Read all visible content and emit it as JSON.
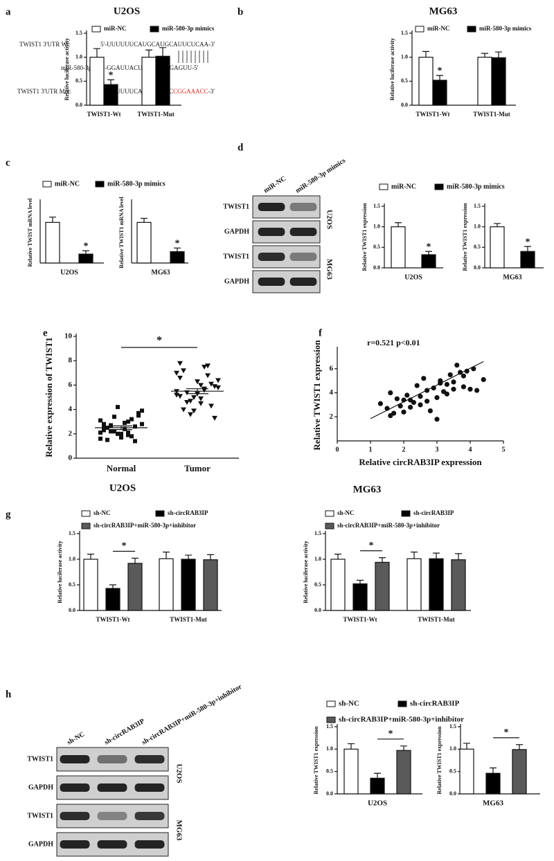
{
  "panels": [
    "a",
    "b",
    "c",
    "d",
    "e",
    "f",
    "g",
    "h"
  ],
  "sequences": {
    "wt_label": "TWIST1  3'UTR  Wt:",
    "wt": "5'-UUUUUUCAUGCAUGCAUUCUCAA-3'",
    "mir_label": "miR-580-3p",
    "sep": ":",
    "mir": "3'-GGAUUACUAAGUAAGAGUU-5'",
    "mut_label": "TWIST1  3'UTR  Mut:",
    "mut": [
      "5'-UUUUUUCAUGCAUGC",
      "CGGAAACC",
      "-3'"
    ],
    "mut_color": "#e0261f"
  },
  "blots": [
    {
      "lanes": [
        "miR-NC",
        "miR-580-3p mimics"
      ],
      "rows": [
        "TWIST1",
        "GAPDH",
        "TWIST1",
        "GAPDH"
      ],
      "cell_lines": [
        "U2OS",
        "MG63"
      ]
    },
    {
      "lanes": [
        "sh-NC",
        "sh-circRAB3IP",
        "sh-circRAB3IP+miR-580-3p+inhibitor"
      ],
      "rows": [
        "TWIST1",
        "GAPDH",
        "TWIST1",
        "GAPDH"
      ],
      "cell_lines": [
        "U2OS",
        "MG63"
      ]
    }
  ],
  "chart_data": [
    {
      "type": "bar",
      "title": "U2OS",
      "y_label": "Relative luciferase activity",
      "categories": [
        "TWIST1-Wt",
        "TWIST1-Mut"
      ],
      "series": [
        {
          "name": "miR-NC",
          "color": "#ffffff",
          "values": [
            1.0,
            1.0
          ],
          "errors": [
            0.18,
            0.15
          ]
        },
        {
          "name": "miR-580-3p mimics",
          "color": "#000000",
          "values": [
            0.43,
            1.02
          ],
          "errors": [
            0.1,
            0.18
          ]
        }
      ],
      "ylim": [
        0,
        1.5
      ],
      "yticks": [
        {
          "value": 0,
          "label": "0.0"
        },
        0.5,
        {
          "value": 1,
          "label": "1.0"
        },
        {
          "value": 1.5,
          "label": "1.5"
        }
      ],
      "annotation": "*"
    },
    {
      "type": "bar",
      "title": "MG63",
      "y_label": "Relative luciferase activity",
      "categories": [
        "TWIST1-Wt",
        "TWIST1-Mut"
      ],
      "series": [
        {
          "name": "miR-NC",
          "color": "#ffffff",
          "values": [
            1.0,
            1.0
          ],
          "errors": [
            0.12,
            0.08
          ]
        },
        {
          "name": "miR-580-3p mimics",
          "color": "#000000",
          "values": [
            0.52,
            0.99
          ],
          "errors": [
            0.1,
            0.12
          ]
        }
      ],
      "ylim": [
        0,
        1.5
      ],
      "yticks": [
        {
          "value": 0,
          "label": "0.0"
        },
        0.5,
        {
          "value": 1,
          "label": "1.0"
        },
        {
          "value": 1.5,
          "label": "1.5"
        }
      ],
      "annotation": "*"
    },
    {
      "type": "bar",
      "y_label": "Relative TWIST mRNA  level",
      "categories": [
        "U2OS"
      ],
      "series": [
        {
          "name": "miR-NC",
          "color": "#ffffff",
          "values": [
            1.0
          ],
          "errors": [
            0.13
          ]
        },
        {
          "name": "miR-580-3p mimics",
          "color": "#000000",
          "values": [
            0.22
          ],
          "errors": [
            0.08
          ]
        }
      ],
      "ylim": [
        0,
        1.5
      ],
      "annotation": "*"
    },
    {
      "type": "bar",
      "y_label": "Relative TWIST1 mRNA  level",
      "categories": [
        "MG63"
      ],
      "series": [
        {
          "color": "#ffffff",
          "values": [
            1.0
          ],
          "errors": [
            0.1
          ]
        },
        {
          "color": "#000000",
          "values": [
            0.28
          ],
          "errors": [
            0.09
          ]
        }
      ],
      "ylim": [
        0,
        1.5
      ],
      "annotation": "*"
    },
    {
      "type": "bar",
      "y_label": "Relative TWIST1  expression",
      "categories": [
        "U2OS"
      ],
      "series": [
        {
          "name": "miR-NC",
          "color": "#ffffff",
          "values": [
            1.0
          ],
          "errors": [
            0.1
          ]
        },
        {
          "name": "miR-580-3p mimics",
          "color": "#000000",
          "values": [
            0.32
          ],
          "errors": [
            0.08
          ]
        }
      ],
      "ylim": [
        0,
        1.5
      ],
      "yticks": [
        {
          "value": 0,
          "label": "0.0"
        },
        0.5,
        {
          "value": 1,
          "label": "1.0"
        },
        {
          "value": 1.5,
          "label": "1.5"
        }
      ],
      "annotation": "*"
    },
    {
      "type": "bar",
      "y_label": "Relative TWIST1  expression",
      "categories": [
        "MG63"
      ],
      "series": [
        {
          "color": "#ffffff",
          "values": [
            1.0
          ],
          "errors": [
            0.08
          ]
        },
        {
          "color": "#000000",
          "values": [
            0.4
          ],
          "errors": [
            0.12
          ]
        }
      ],
      "ylim": [
        0,
        1.5
      ],
      "yticks": [
        {
          "value": 0,
          "label": "0.0"
        },
        0.5,
        {
          "value": 1,
          "label": "1.0"
        },
        {
          "value": 1.5,
          "label": "1.5"
        }
      ],
      "annotation": "*"
    },
    {
      "type": "dotplot",
      "y_label": "Relative  expression  of TWIST1",
      "categories": [
        "Normal",
        "Tumor"
      ],
      "values": [
        [
          2.1,
          2.4,
          2.8,
          3.0,
          1.5,
          1.8,
          2.2,
          2.6,
          3.4,
          3.7,
          4.2,
          3.9,
          2.0,
          1.6,
          2.9,
          2.3,
          1.9,
          2.5,
          3.2,
          2.7,
          1.4,
          2.2,
          3.5,
          2.0,
          2.8,
          1.7,
          3.1,
          2.4,
          2.6,
          2.1
        ],
        [
          5.5,
          6.0,
          7.8,
          7.5,
          7.2,
          6.8,
          4.6,
          4.3,
          3.6,
          3.3,
          5.0,
          5.8,
          6.3,
          5.2,
          4.9,
          6.6,
          5.6,
          4.0,
          7.6,
          5.4,
          6.1,
          4.7,
          5.9,
          3.9,
          6.4,
          5.3,
          7.0,
          4.5,
          5.1,
          5.7
        ]
      ],
      "mean": [
        2.5,
        5.5
      ],
      "sem": [
        0.15,
        0.2
      ],
      "ylim": [
        0,
        10
      ],
      "yticks": [
        0,
        2,
        4,
        6,
        8,
        10
      ],
      "annotation": "*"
    },
    {
      "type": "scatter",
      "y_label": "Relative TWIST1  expression",
      "x_label": "Relative  circRAB3IP  expression",
      "annotation": "r=0.521  p<0.01",
      "x": [
        1.3,
        1.5,
        1.6,
        1.7,
        1.8,
        1.9,
        2.0,
        2.1,
        2.2,
        2.3,
        2.4,
        2.5,
        2.6,
        2.7,
        2.8,
        2.9,
        3.0,
        3.1,
        3.2,
        3.3,
        3.4,
        3.5,
        3.6,
        3.7,
        3.8,
        3.9,
        4.0,
        4.1,
        4.2,
        4.4,
        1.6,
        2.2,
        2.5,
        2.7,
        3.0,
        3.3,
        3.5,
        3.8,
        2.0,
        3.1
      ],
      "y": [
        3.1,
        2.7,
        4.0,
        2.3,
        3.5,
        2.9,
        2.4,
        3.8,
        2.8,
        3.2,
        4.6,
        3.7,
        5.2,
        3.3,
        2.5,
        4.4,
        1.8,
        4.8,
        4.1,
        3.9,
        5.5,
        4.3,
        6.3,
        5.7,
        4.5,
        5.8,
        4.3,
        6.0,
        4.2,
        5.1,
        2.1,
        3.4,
        3.0,
        4.2,
        3.6,
        4.7,
        4.9,
        5.4,
        3.4,
        5.0
      ],
      "trend_line": {
        "x": [
          1,
          4.4
        ],
        "y": [
          1.85,
          6.6
        ]
      },
      "xlim": [
        0,
        5
      ],
      "xticks": [
        0,
        1,
        2,
        3,
        4,
        5
      ],
      "ylim": [
        0,
        7.6
      ],
      "yticks": [
        2,
        4,
        6
      ]
    },
    {
      "type": "bar",
      "title": "U2OS",
      "y_label": "Relative luciferase activity",
      "categories": [
        "TWIST1-Wt",
        "TWIST1-Mut"
      ],
      "series": [
        {
          "name": "sh-NC",
          "color": "#ffffff",
          "values": [
            1.0,
            1.01
          ],
          "errors": [
            0.1,
            0.13
          ]
        },
        {
          "name": "sh-circRAB3IP",
          "color": "#000000",
          "values": [
            0.43,
            1.0
          ],
          "errors": [
            0.07,
            0.08
          ]
        },
        {
          "name": "sh-circRAB3IP+miR-580-3p+inhibitor",
          "color": "#5a5a5a",
          "values": [
            0.92,
            0.99
          ],
          "errors": [
            0.1,
            0.1
          ]
        }
      ],
      "ylim": [
        0,
        1.5
      ],
      "yticks": [
        {
          "value": 0,
          "label": "0.0"
        },
        0.5,
        {
          "value": 1,
          "label": "1.0"
        },
        {
          "value": 1.5,
          "label": "1.5"
        }
      ],
      "annotation": "*"
    },
    {
      "type": "bar",
      "title": "MG63",
      "y_label": "Relative luciferase activity",
      "categories": [
        "TWIST1-Wt",
        "TWIST1-Mut"
      ],
      "series": [
        {
          "name": "sh-NC",
          "color": "#ffffff",
          "values": [
            1.0,
            1.01
          ],
          "errors": [
            0.1,
            0.13
          ]
        },
        {
          "name": "sh-circRAB3IP",
          "color": "#000000",
          "values": [
            0.52,
            1.01
          ],
          "errors": [
            0.07,
            0.11
          ]
        },
        {
          "name": "sh-circRAB3IP+miR-580-3p+inhibitor",
          "color": "#5a5a5a",
          "values": [
            0.94,
            0.99
          ],
          "errors": [
            0.09,
            0.12
          ]
        }
      ],
      "ylim": [
        0,
        1.5
      ],
      "yticks": [
        {
          "value": 0,
          "label": "0.0"
        },
        0.5,
        {
          "value": 1,
          "label": "1.0"
        },
        {
          "value": 1.5,
          "label": "1.5"
        }
      ],
      "annotation": "*"
    },
    {
      "type": "bar",
      "y_label": "Relative TWIST1  expression",
      "categories": [
        "U2OS"
      ],
      "series": [
        {
          "name": "sh-NC",
          "color": "#ffffff",
          "values": [
            1.0
          ],
          "errors": [
            0.12
          ]
        },
        {
          "name": "sh-circRAB3IP",
          "color": "#000000",
          "values": [
            0.35
          ],
          "errors": [
            0.11
          ]
        },
        {
          "name": "sh-circRAB3IP+miR-580-3p+inhibitor",
          "color": "#5a5a5a",
          "values": [
            0.97
          ],
          "errors": [
            0.1
          ]
        }
      ],
      "ylim": [
        0,
        1.5
      ],
      "yticks": [
        {
          "value": 0,
          "label": "0.0"
        },
        0.5,
        {
          "value": 1,
          "label": "1.0"
        },
        {
          "value": 1.5,
          "label": "1.5"
        }
      ],
      "annotation": "*"
    },
    {
      "type": "bar",
      "y_label": "Relative TWIST1  expression",
      "categories": [
        "MG63"
      ],
      "series": [
        {
          "color": "#ffffff",
          "values": [
            1.0
          ],
          "errors": [
            0.13
          ]
        },
        {
          "color": "#000000",
          "values": [
            0.46
          ],
          "errors": [
            0.12
          ]
        },
        {
          "color": "#5a5a5a",
          "values": [
            0.99
          ],
          "errors": [
            0.11
          ]
        }
      ],
      "ylim": [
        0,
        1.5
      ],
      "yticks": [
        {
          "value": 0,
          "label": "0.0"
        },
        0.5,
        {
          "value": 1,
          "label": "1.0"
        },
        {
          "value": 1.5,
          "label": "1.5"
        }
      ],
      "annotation": "*"
    }
  ]
}
